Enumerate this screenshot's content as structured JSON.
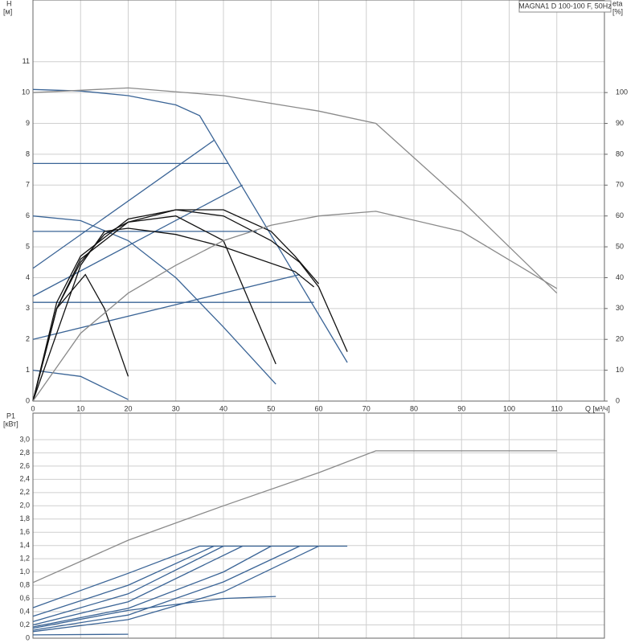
{
  "chart_data": [
    {
      "type": "line",
      "title": "MAGNA1 D 100-100 F, 50Hz",
      "y_label": "H",
      "y_unit": "[м]",
      "y2_label": "eta",
      "y2_unit": "[%]",
      "x_label": "Q [м³/ч]",
      "xlim": [
        0,
        120
      ],
      "xticks": [
        0,
        10,
        20,
        30,
        40,
        50,
        60,
        70,
        80,
        90,
        100,
        110
      ],
      "ylim": [
        0,
        13
      ],
      "yticks": [
        0,
        1,
        2,
        3,
        4,
        5,
        6,
        7,
        8,
        9,
        10,
        11
      ],
      "y2lim": [
        0,
        130
      ],
      "y2ticks": [
        0,
        10,
        20,
        30,
        40,
        50,
        60,
        70,
        80,
        90,
        100
      ],
      "grid": true,
      "series": [
        {
          "color": "#3a6496",
          "x": [
            0,
            10,
            20,
            30,
            35,
            66
          ],
          "values": [
            10.1,
            10.05,
            9.9,
            9.6,
            9.25,
            1.25
          ]
        },
        {
          "color": "#3a6496",
          "x": [
            0,
            41
          ],
          "values": [
            7.7,
            7.7
          ]
        },
        {
          "color": "#3a6496",
          "x": [
            0,
            47
          ],
          "values": [
            5.5,
            5.5
          ]
        },
        {
          "color": "#3a6496",
          "x": [
            0,
            59
          ],
          "values": [
            3.2,
            3.2
          ]
        },
        {
          "color": "#3a6496",
          "x": [
            0,
            38
          ],
          "values": [
            4.3,
            8.45
          ]
        },
        {
          "color": "#3a6496",
          "x": [
            0,
            44
          ],
          "values": [
            3.4,
            7.0
          ]
        },
        {
          "color": "#3a6496",
          "x": [
            0,
            56
          ],
          "values": [
            2.0,
            4.1
          ]
        },
        {
          "color": "#3a6496",
          "x": [
            0,
            10,
            20,
            30,
            40,
            51
          ],
          "values": [
            6.0,
            5.85,
            5.2,
            4.0,
            2.4,
            0.55
          ]
        },
        {
          "color": "#3a6496",
          "x": [
            0,
            10,
            20
          ],
          "values": [
            1.0,
            0.8,
            0.05
          ]
        },
        {
          "color": "#111111",
          "axis": "y2",
          "x": [
            0,
            5,
            11,
            15,
            20
          ],
          "values": [
            0,
            30,
            41,
            30,
            8
          ]
        },
        {
          "color": "#111111",
          "axis": "y2",
          "x": [
            0,
            5,
            10,
            15,
            20,
            30,
            40,
            51
          ],
          "values": [
            0,
            30,
            45,
            54,
            58,
            60,
            52,
            12
          ]
        },
        {
          "color": "#111111",
          "axis": "y2",
          "x": [
            0,
            5,
            10,
            20,
            30,
            40,
            50,
            56,
            60,
            66
          ],
          "values": [
            0,
            32,
            47,
            59,
            62,
            60,
            52,
            45,
            37,
            16
          ]
        },
        {
          "color": "#111111",
          "axis": "y2",
          "x": [
            0,
            5,
            10,
            20,
            30,
            40,
            50,
            55,
            60
          ],
          "values": [
            0,
            30,
            46,
            58,
            62,
            62,
            55,
            47,
            38
          ]
        },
        {
          "color": "#111111",
          "axis": "y2",
          "x": [
            0,
            10,
            15,
            20,
            30,
            40,
            55,
            59
          ],
          "values": [
            0,
            44,
            55,
            56,
            54,
            50,
            42,
            37
          ]
        },
        {
          "color": "#8a8a8a",
          "axis": "y2",
          "x": [
            0,
            20,
            40,
            60,
            72,
            90,
            110
          ],
          "values": [
            100,
            101.5,
            99,
            94,
            90,
            65,
            35
          ]
        },
        {
          "color": "#8a8a8a",
          "axis": "y2",
          "x": [
            0,
            10,
            20,
            30,
            40,
            50,
            60,
            72,
            90,
            110
          ],
          "values": [
            0,
            22,
            35,
            44,
            52,
            57,
            60,
            61.5,
            55,
            36.5
          ]
        }
      ]
    },
    {
      "type": "line",
      "y_label": "P1",
      "y_unit": "[кВт]",
      "xlim": [
        0,
        120
      ],
      "xticks": [
        0,
        10,
        20,
        30,
        40,
        50,
        60,
        70,
        80,
        90,
        100,
        110
      ],
      "ylim": [
        0,
        3.4
      ],
      "yticks": [
        0,
        {
          "value": 0.2,
          "label": "0,2"
        },
        {
          "value": 0.4,
          "label": "0,4"
        },
        {
          "value": 0.6,
          "label": "0,6"
        },
        {
          "value": 0.8,
          "label": "0,8"
        },
        {
          "value": 1.0,
          "label": "1,0"
        },
        {
          "value": 1.2,
          "label": "1,2"
        },
        {
          "value": 1.4,
          "label": "1,4"
        },
        {
          "value": 1.6,
          "label": "1,6"
        },
        {
          "value": 1.8,
          "label": "1,8"
        },
        {
          "value": 2.0,
          "label": "2,0"
        },
        {
          "value": 2.2,
          "label": "2,2"
        },
        {
          "value": 2.4,
          "label": "2,4"
        },
        {
          "value": 2.6,
          "label": "2,6"
        },
        {
          "value": 2.8,
          "label": "2,8"
        },
        {
          "value": 3.0,
          "label": "3,0"
        }
      ],
      "grid": true,
      "series": [
        {
          "color": "#8a8a8a",
          "x": [
            0,
            20,
            40,
            60,
            72,
            110
          ],
          "values": [
            0.84,
            1.48,
            2.0,
            2.5,
            2.83,
            2.83
          ]
        },
        {
          "color": "#3a6496",
          "x": [
            0,
            10,
            20,
            35,
            66
          ],
          "values": [
            0.46,
            0.72,
            0.98,
            1.39,
            1.39
          ]
        },
        {
          "color": "#3a6496",
          "x": [
            0,
            20,
            38
          ],
          "values": [
            0.33,
            0.8,
            1.39
          ]
        },
        {
          "color": "#3a6496",
          "x": [
            0,
            20,
            40
          ],
          "values": [
            0.25,
            0.67,
            1.39
          ]
        },
        {
          "color": "#3a6496",
          "x": [
            0,
            20,
            44
          ],
          "values": [
            0.2,
            0.55,
            1.39
          ]
        },
        {
          "color": "#3a6496",
          "x": [
            0,
            20,
            40,
            50
          ],
          "values": [
            0.17,
            0.45,
            1.0,
            1.39
          ]
        },
        {
          "color": "#3a6496",
          "x": [
            0,
            20,
            40,
            56
          ],
          "values": [
            0.12,
            0.35,
            0.85,
            1.39
          ]
        },
        {
          "color": "#3a6496",
          "x": [
            0,
            20,
            40,
            60
          ],
          "values": [
            0.1,
            0.28,
            0.7,
            1.39
          ]
        },
        {
          "color": "#3a6496",
          "x": [
            0,
            20,
            40,
            51
          ],
          "values": [
            0.15,
            0.42,
            0.6,
            0.63
          ]
        },
        {
          "color": "#3a6496",
          "x": [
            0,
            20
          ],
          "values": [
            0.05,
            0.06
          ]
        }
      ]
    }
  ]
}
